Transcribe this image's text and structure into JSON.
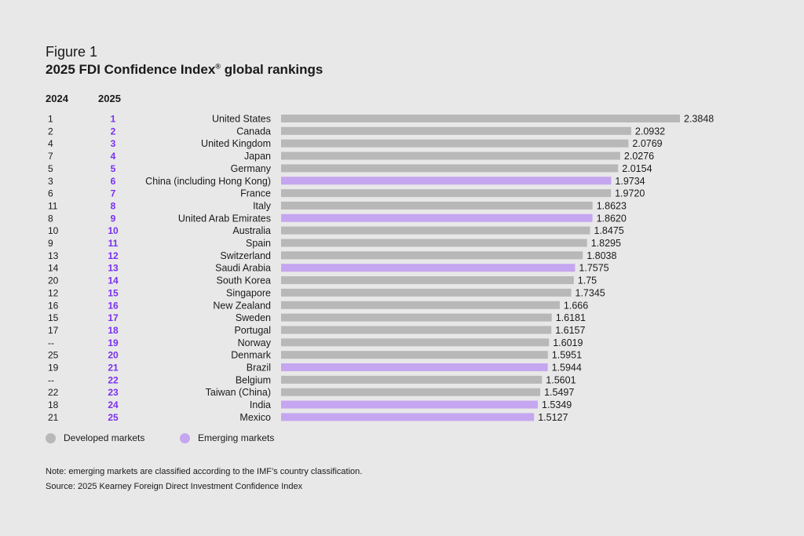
{
  "figure": {
    "label": "Figure 1",
    "title": "2025 FDI Confidence Index",
    "title_mark": "®",
    "title_tail": " global rankings"
  },
  "columns": {
    "prev_year": "2024",
    "curr_year": "2025"
  },
  "colors": {
    "developed": "#b8b8b8",
    "emerging": "#c5a6f0",
    "rank_accent": "#7b2ff0",
    "background": "#e8e8e8"
  },
  "legend": {
    "developed": "Developed markets",
    "emerging": "Emerging markets"
  },
  "notes": {
    "note": "Note: emerging markets are classified according to the IMF’s country classification.",
    "source": "Source: 2025 Kearney Foreign Direct Investment Confidence Index"
  },
  "chart_data": {
    "type": "bar",
    "orientation": "horizontal",
    "series": [
      {
        "values": [
          2.3848,
          2.0932,
          2.0769,
          2.0276,
          2.0154,
          1.9734,
          1.972,
          1.8623,
          1.862,
          1.8475,
          1.8295,
          1.8038,
          1.7575,
          1.75,
          1.7345,
          1.666,
          1.6181,
          1.6157,
          1.6019,
          1.5951,
          1.5944,
          1.5601,
          1.5497,
          1.5349,
          1.5127
        ]
      }
    ],
    "categories": [
      "United States",
      "Canada",
      "United Kingdom",
      "Japan",
      "Germany",
      "China (including Hong Kong)",
      "France",
      "Italy",
      "United Arab Emirates",
      "Australia",
      "Spain",
      "Switzerland",
      "Saudi Arabia",
      "South Korea",
      "Singapore",
      "New Zealand",
      "Sweden",
      "Portugal",
      "Norway",
      "Denmark",
      "Brazil",
      "Belgium",
      "Taiwan (China)",
      "India",
      "Mexico"
    ],
    "value_labels": [
      "2.3848",
      "2.0932",
      "2.0769",
      "2.0276",
      "2.0154",
      "1.9734",
      "1.9720",
      "1.8623",
      "1.8620",
      "1.8475",
      "1.8295",
      "1.8038",
      "1.7575",
      "1.75",
      "1.7345",
      "1.666",
      "1.6181",
      "1.6157",
      "1.6019",
      "1.5951",
      "1.5944",
      "1.5601",
      "1.5497",
      "1.5349",
      "1.5127"
    ],
    "market": [
      "developed",
      "developed",
      "developed",
      "developed",
      "developed",
      "emerging",
      "developed",
      "developed",
      "emerging",
      "developed",
      "developed",
      "developed",
      "emerging",
      "developed",
      "developed",
      "developed",
      "developed",
      "developed",
      "developed",
      "developed",
      "emerging",
      "developed",
      "developed",
      "emerging",
      "emerging"
    ],
    "rank_2024": [
      "1",
      "2",
      "4",
      "7",
      "5",
      "3",
      "6",
      "11",
      "8",
      "10",
      "9",
      "13",
      "14",
      "20",
      "12",
      "16",
      "15",
      "17",
      "--",
      "25",
      "19",
      "--",
      "22",
      "18",
      "21"
    ],
    "rank_2025": [
      "1",
      "2",
      "3",
      "4",
      "5",
      "6",
      "7",
      "8",
      "9",
      "10",
      "11",
      "12",
      "13",
      "14",
      "15",
      "16",
      "17",
      "18",
      "19",
      "20",
      "21",
      "22",
      "23",
      "24",
      "25"
    ],
    "xlim": [
      0,
      2.3848
    ],
    "grid": false,
    "legend_position": "bottom-left"
  }
}
